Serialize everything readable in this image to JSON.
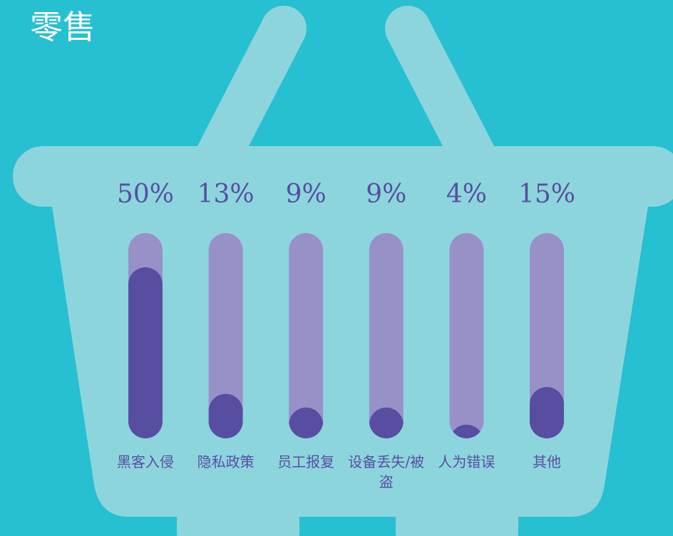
{
  "chart_data": {
    "type": "bar",
    "title": "零售",
    "categories": [
      "黑客入侵",
      "隐私政策",
      "员工报复",
      "设备丢失/被盗",
      "人为错误",
      "其他"
    ],
    "values": [
      50,
      13,
      9,
      9,
      4,
      15
    ],
    "value_labels": [
      "50%",
      "13%",
      "9%",
      "9%",
      "4%",
      "15%"
    ],
    "color": "#574ea2",
    "track_color": "#9891c8",
    "ylim": [
      0,
      60
    ]
  }
}
